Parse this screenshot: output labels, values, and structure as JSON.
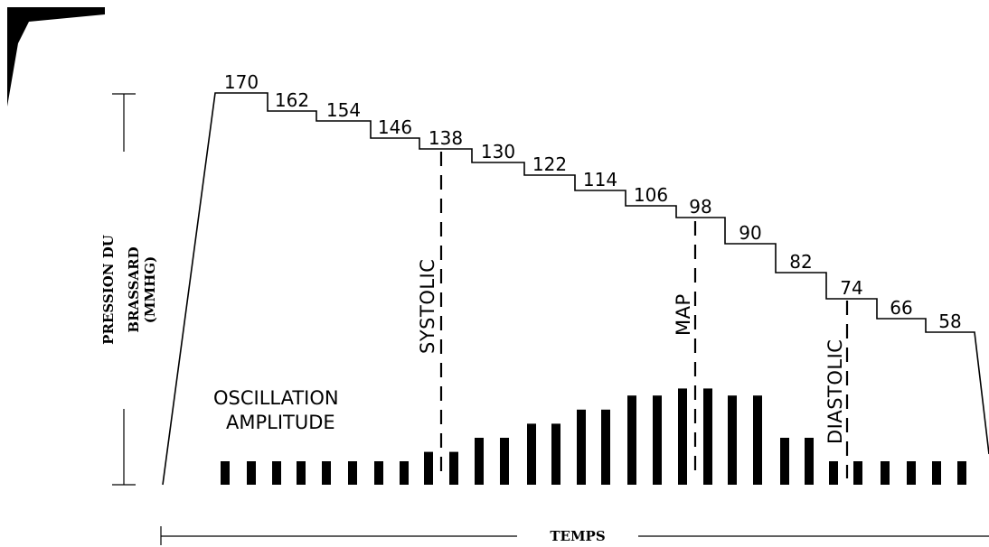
{
  "y_axis_label": [
    "PRESSION DU",
    "BRASSARD",
    "(MMHG)"
  ],
  "x_axis_label": "TEMPS",
  "oscillation_label": [
    "OSCILLATION",
    "AMPLITUDE"
  ],
  "markers": {
    "systolic": "SYSTOLIC",
    "map": "MAP",
    "diastolic": "DIASTOLIC"
  },
  "chart_data": {
    "type": "step",
    "pressure_steps": [
      "170",
      "162",
      "154",
      "146",
      "138",
      "130",
      "122",
      "114",
      "106",
      "98",
      "90",
      "82",
      "74",
      "66",
      "58"
    ],
    "oscillation_amplitudes": [
      1,
      1,
      1,
      1,
      1,
      1,
      1,
      1,
      1.4,
      1.4,
      2,
      2,
      2.6,
      2.6,
      3.2,
      3.2,
      3.8,
      3.8,
      4.1,
      4.1,
      3.8,
      3.8,
      2,
      2,
      1,
      1,
      1,
      1,
      1,
      1
    ]
  }
}
